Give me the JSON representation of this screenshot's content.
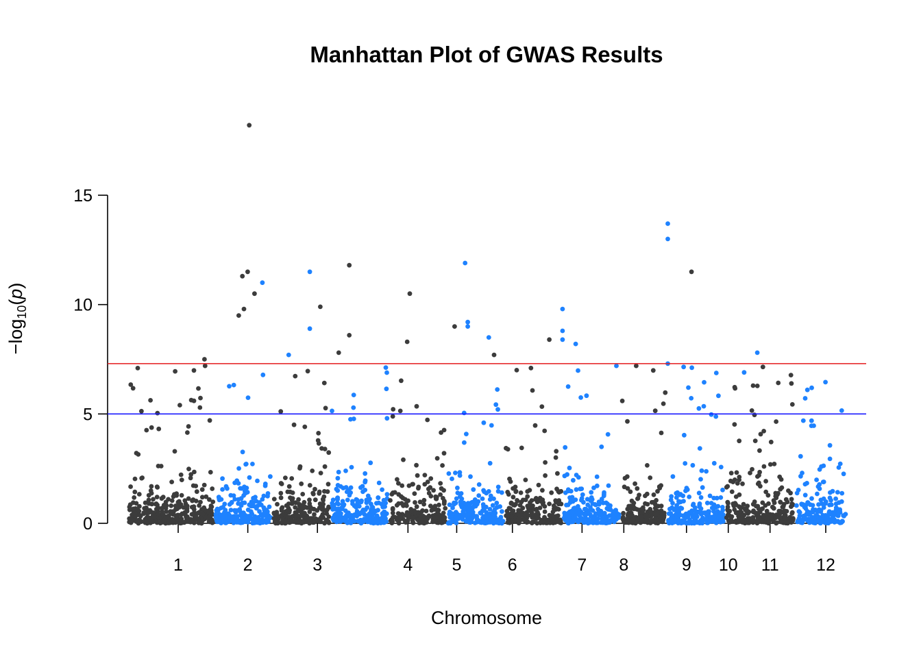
{
  "chart_data": {
    "type": "scatter",
    "title": "Manhattan Plot of GWAS Results",
    "xlabel": "Chromosome",
    "ylabel": "−log10(p)",
    "ylabel_parts": {
      "prefix": "−log",
      "subscript": "10",
      "open": "(",
      "var": "p",
      "close": ")"
    },
    "ylim": [
      0,
      15
    ],
    "y_ticks": [
      "0",
      "5",
      "10",
      "15"
    ],
    "x_ticks": [
      "1",
      "2",
      "3",
      "4",
      "5",
      "6",
      "7",
      "8",
      "9",
      "10",
      "11",
      "12"
    ],
    "grid": false,
    "legend": "none",
    "point_colors": [
      "#3c3c3c",
      "#1e82ff"
    ],
    "thresholds": [
      {
        "value": 7.3,
        "color": "#e41a1c"
      },
      {
        "value": 5.0,
        "color": "#1a1aff"
      }
    ],
    "chromosomes": [
      {
        "chr": "1",
        "span": [
          0.0,
          1.5
        ],
        "color": "#3c3c3c"
      },
      {
        "chr": "2",
        "span": [
          1.5,
          2.5
        ],
        "color": "#1e82ff"
      },
      {
        "chr": "3",
        "span": [
          2.5,
          3.5
        ],
        "color": "#3c3c3c"
      },
      {
        "chr": "4",
        "span": [
          3.5,
          4.5
        ],
        "color": "#1e82ff"
      },
      {
        "chr": "5",
        "span": [
          4.5,
          5.5
        ],
        "color": "#3c3c3c"
      },
      {
        "chr": "6",
        "span": [
          5.5,
          6.5
        ],
        "color": "#1e82ff"
      },
      {
        "chr": "7",
        "span": [
          6.5,
          7.5
        ],
        "color": "#3c3c3c"
      },
      {
        "chr": "8",
        "span": [
          7.5,
          8.5
        ],
        "color": "#1e82ff"
      },
      {
        "chr": "9",
        "span": [
          8.5,
          9.3
        ],
        "color": "#3c3c3c"
      },
      {
        "chr": "10",
        "span": [
          9.3,
          10.3
        ],
        "color": "#1e82ff"
      },
      {
        "chr": "11",
        "span": [
          10.3,
          11.5
        ],
        "color": "#3c3c3c"
      },
      {
        "chr": "12",
        "span": [
          11.5,
          12.4
        ],
        "color": "#1e82ff"
      }
    ],
    "tick_positions": [
      1.0,
      2.0,
      3.0,
      4.3,
      5.0,
      5.8,
      6.8,
      7.4,
      8.3,
      8.9,
      9.5,
      10.3
    ],
    "xlim": [
      -1.0,
      11.3
    ],
    "notable_points": [
      {
        "x": 0.35,
        "y": 18.2,
        "color": "#3c3c3c"
      },
      {
        "x": 0.32,
        "y": 11.5,
        "color": "#3c3c3c"
      },
      {
        "x": 0.22,
        "y": 11.3,
        "color": "#3c3c3c"
      },
      {
        "x": 0.45,
        "y": 10.5,
        "color": "#3c3c3c"
      },
      {
        "x": 0.25,
        "y": 9.8,
        "color": "#3c3c3c"
      },
      {
        "x": 0.15,
        "y": 9.5,
        "color": "#3c3c3c"
      },
      {
        "x": -0.5,
        "y": 7.5,
        "color": "#3c3c3c"
      },
      {
        "x": 0.6,
        "y": 11.0,
        "color": "#1e82ff"
      },
      {
        "x": 1.5,
        "y": 11.5,
        "color": "#1e82ff"
      },
      {
        "x": 1.5,
        "y": 8.9,
        "color": "#1e82ff"
      },
      {
        "x": 1.1,
        "y": 7.7,
        "color": "#1e82ff"
      },
      {
        "x": 1.7,
        "y": 9.9,
        "color": "#3c3c3c"
      },
      {
        "x": 2.25,
        "y": 11.8,
        "color": "#3c3c3c"
      },
      {
        "x": 2.25,
        "y": 8.6,
        "color": "#3c3c3c"
      },
      {
        "x": 2.05,
        "y": 7.8,
        "color": "#3c3c3c"
      },
      {
        "x": 3.4,
        "y": 10.5,
        "color": "#3c3c3c"
      },
      {
        "x": 3.35,
        "y": 8.3,
        "color": "#3c3c3c"
      },
      {
        "x": 4.45,
        "y": 11.9,
        "color": "#1e82ff"
      },
      {
        "x": 4.5,
        "y": 9.2,
        "color": "#1e82ff"
      },
      {
        "x": 4.5,
        "y": 9.0,
        "color": "#1e82ff"
      },
      {
        "x": 4.9,
        "y": 8.5,
        "color": "#1e82ff"
      },
      {
        "x": 4.25,
        "y": 9.0,
        "color": "#3c3c3c"
      },
      {
        "x": 5.0,
        "y": 7.7,
        "color": "#3c3c3c"
      },
      {
        "x": 6.3,
        "y": 9.8,
        "color": "#1e82ff"
      },
      {
        "x": 6.3,
        "y": 8.8,
        "color": "#1e82ff"
      },
      {
        "x": 6.3,
        "y": 8.4,
        "color": "#1e82ff"
      },
      {
        "x": 6.55,
        "y": 8.2,
        "color": "#1e82ff"
      },
      {
        "x": 6.05,
        "y": 8.4,
        "color": "#3c3c3c"
      },
      {
        "x": 5.7,
        "y": 7.1,
        "color": "#3c3c3c"
      },
      {
        "x": 8.3,
        "y": 13.7,
        "color": "#1e82ff"
      },
      {
        "x": 8.3,
        "y": 13.0,
        "color": "#1e82ff"
      },
      {
        "x": 8.3,
        "y": 7.3,
        "color": "#1e82ff"
      },
      {
        "x": 8.75,
        "y": 11.5,
        "color": "#3c3c3c"
      },
      {
        "x": 7.7,
        "y": 7.2,
        "color": "#3c3c3c"
      },
      {
        "x": 10.0,
        "y": 7.8,
        "color": "#1e82ff"
      },
      {
        "x": 9.75,
        "y": 6.9,
        "color": "#1e82ff"
      }
    ]
  }
}
